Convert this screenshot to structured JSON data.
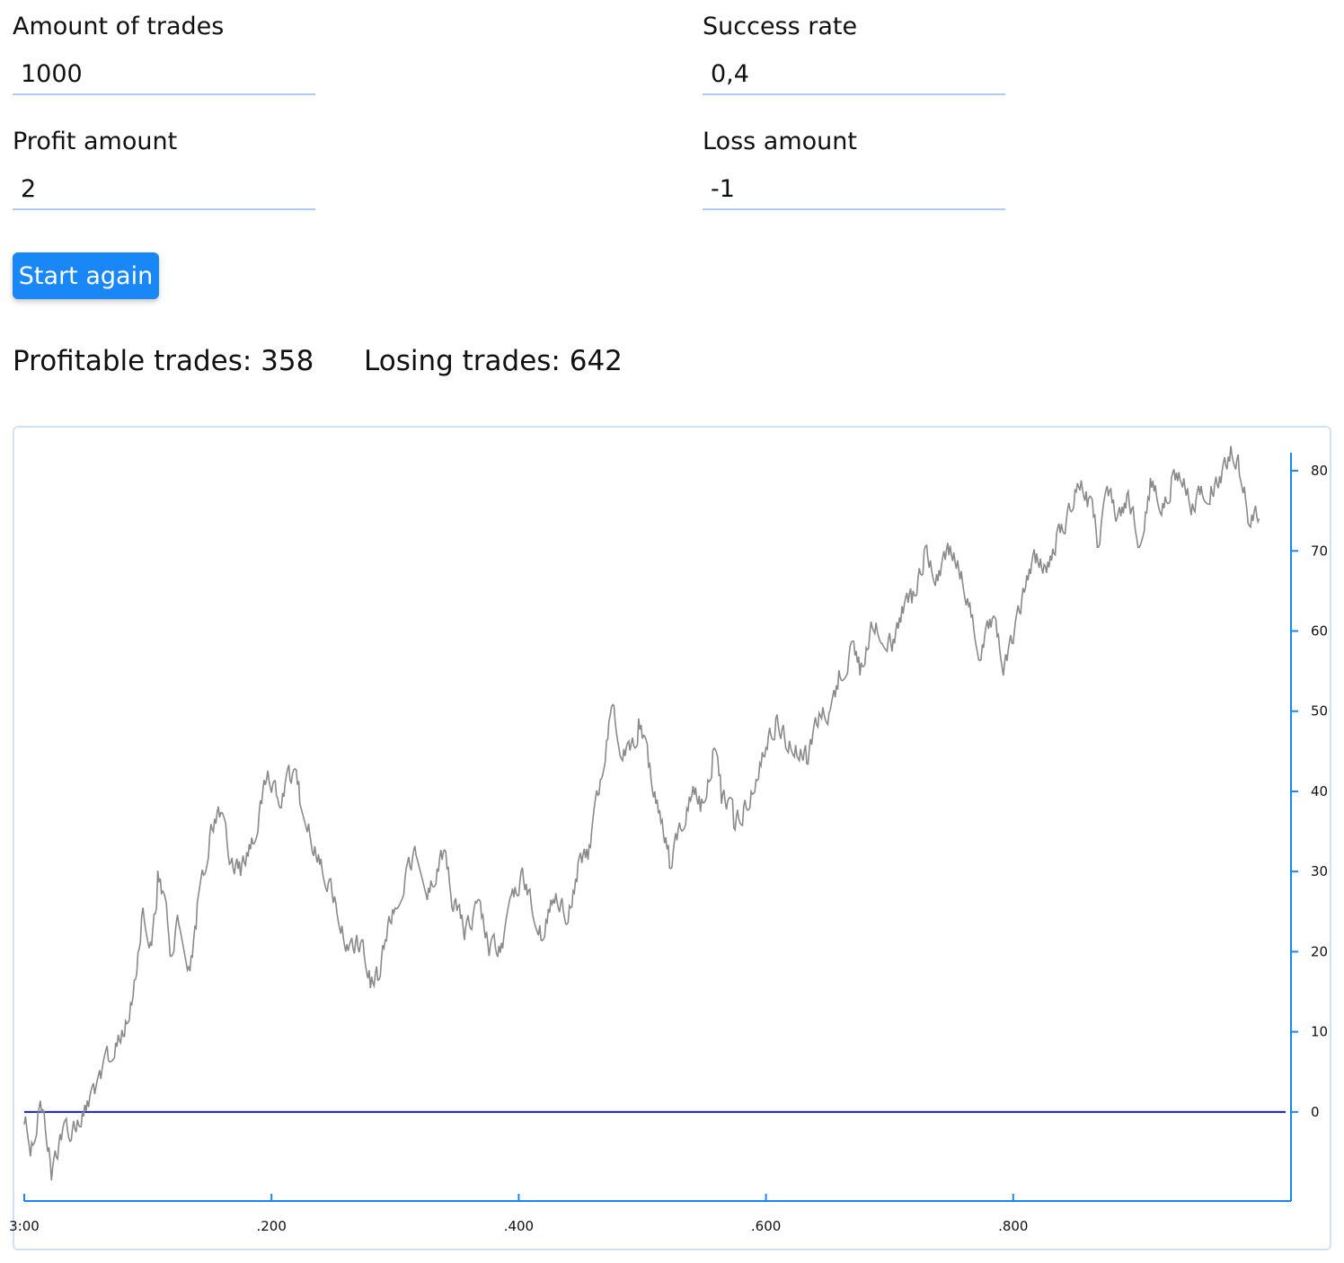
{
  "form": {
    "amount_of_trades": {
      "label": "Amount of trades",
      "value": "1000"
    },
    "success_rate": {
      "label": "Success rate",
      "value": "0,4"
    },
    "profit_amount": {
      "label": "Profit amount",
      "value": "2"
    },
    "loss_amount": {
      "label": "Loss amount",
      "value": "-1"
    }
  },
  "start_button_label": "Start again",
  "stats": {
    "profitable_text": "Profitable trades: 358",
    "losing_text": "Losing trades: 642"
  },
  "colors": {
    "accent": "#1a87f6",
    "axis": "#1a87f6",
    "series": "#8a8a8a",
    "zero_line": "#1c1ccc"
  },
  "chart_data": {
    "type": "line",
    "x_tick_labels": [
      "3:00",
      ".200",
      ".400",
      ".600",
      ".800"
    ],
    "x_ticks": [
      0,
      200,
      400,
      600,
      800
    ],
    "xlim": [
      0,
      1004
    ],
    "y_ticks": [
      0,
      10,
      20,
      30,
      40,
      50,
      60,
      70,
      80
    ],
    "ylim": [
      -11,
      81.8
    ],
    "y_axis_side": "right",
    "zero_line": 0,
    "series": [
      {
        "trend": [
          [
            0,
            -1
          ],
          [
            5,
            -5
          ],
          [
            12,
            1
          ],
          [
            22,
            -8
          ],
          [
            30,
            -3
          ],
          [
            38,
            -3
          ],
          [
            48,
            0
          ],
          [
            58,
            2
          ],
          [
            68,
            7
          ],
          [
            80,
            10
          ],
          [
            88,
            15
          ],
          [
            95,
            25
          ],
          [
            102,
            20
          ],
          [
            108,
            29
          ],
          [
            118,
            20
          ],
          [
            125,
            24
          ],
          [
            133,
            17
          ],
          [
            140,
            25
          ],
          [
            150,
            35
          ],
          [
            157,
            37
          ],
          [
            167,
            30
          ],
          [
            175,
            30
          ],
          [
            185,
            34
          ],
          [
            196,
            42
          ],
          [
            205,
            38
          ],
          [
            215,
            42
          ],
          [
            223,
            39
          ],
          [
            233,
            33
          ],
          [
            245,
            28
          ],
          [
            252,
            25
          ],
          [
            262,
            19
          ],
          [
            270,
            21
          ],
          [
            280,
            16
          ],
          [
            286,
            17
          ],
          [
            292,
            22
          ],
          [
            300,
            26
          ],
          [
            310,
            30
          ],
          [
            318,
            32
          ],
          [
            326,
            27
          ],
          [
            338,
            32
          ],
          [
            346,
            26
          ],
          [
            356,
            22
          ],
          [
            366,
            25
          ],
          [
            376,
            20
          ],
          [
            386,
            20
          ],
          [
            394,
            26
          ],
          [
            402,
            29
          ],
          [
            410,
            25
          ],
          [
            418,
            22
          ],
          [
            428,
            27
          ],
          [
            438,
            24
          ],
          [
            448,
            30
          ],
          [
            456,
            32
          ],
          [
            466,
            42
          ],
          [
            474,
            50
          ],
          [
            482,
            45
          ],
          [
            490,
            44
          ],
          [
            497,
            48
          ],
          [
            505,
            42
          ],
          [
            515,
            35
          ],
          [
            522,
            31
          ],
          [
            530,
            35
          ],
          [
            540,
            40
          ],
          [
            547,
            38
          ],
          [
            557,
            44
          ],
          [
            564,
            39
          ],
          [
            574,
            36
          ],
          [
            582,
            37
          ],
          [
            592,
            42
          ],
          [
            600,
            46
          ],
          [
            608,
            48
          ],
          [
            616,
            46
          ],
          [
            625,
            45
          ],
          [
            633,
            44
          ],
          [
            644,
            50
          ],
          [
            652,
            49
          ],
          [
            659,
            54
          ],
          [
            668,
            57
          ],
          [
            676,
            55
          ],
          [
            686,
            61
          ],
          [
            694,
            59
          ],
          [
            702,
            58
          ],
          [
            710,
            62
          ],
          [
            718,
            64
          ],
          [
            728,
            69
          ],
          [
            738,
            66
          ],
          [
            748,
            70
          ],
          [
            757,
            67
          ],
          [
            764,
            62
          ],
          [
            772,
            57
          ],
          [
            782,
            61
          ],
          [
            792,
            55
          ],
          [
            800,
            59
          ],
          [
            810,
            66
          ],
          [
            818,
            69
          ],
          [
            826,
            67
          ],
          [
            835,
            71
          ],
          [
            844,
            74
          ],
          [
            852,
            79
          ],
          [
            860,
            76
          ],
          [
            868,
            71
          ],
          [
            876,
            77
          ],
          [
            884,
            73
          ],
          [
            892,
            76
          ],
          [
            901,
            71
          ],
          [
            911,
            78
          ],
          [
            920,
            75
          ],
          [
            928,
            78
          ],
          [
            936,
            79
          ],
          [
            944,
            75
          ],
          [
            952,
            77
          ],
          [
            960,
            77
          ],
          [
            968,
            79
          ],
          [
            976,
            82
          ],
          [
            983,
            80
          ],
          [
            990,
            74
          ]
        ],
        "last": [
          999,
          74
        ]
      }
    ]
  }
}
